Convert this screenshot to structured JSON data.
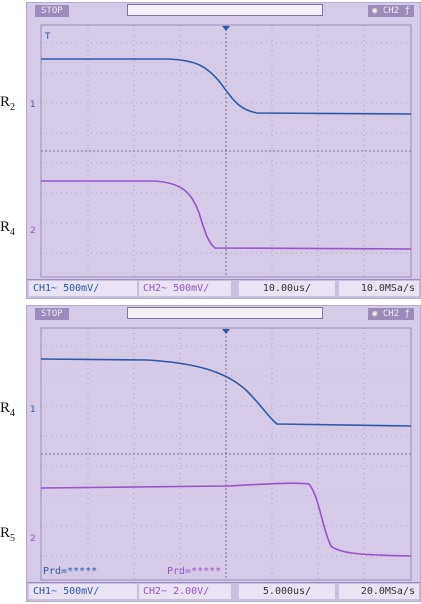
{
  "screens": [
    {
      "status": "STOP",
      "ch2_tag": "CH2",
      "labels": {
        "upper": "R",
        "upper_sub": "2",
        "lower": "R",
        "lower_sub": "4"
      },
      "ch1": "CH1~  500mV/",
      "ch2": "CH2~  500mV/",
      "timebase": "10.00us/",
      "sample": "10.0MSa/s"
    },
    {
      "status": "STOP",
      "ch2_tag": "CH2",
      "labels": {
        "upper": "R",
        "upper_sub": "4",
        "lower": "R",
        "lower_sub": "5"
      },
      "ch1": "CH1~  500mV/",
      "ch2": "CH2~  2.00V/",
      "timebase": "5.000us/",
      "sample": "20.0MSa/s",
      "prd1": "Prd=*****",
      "prd2": "Prd=*****"
    }
  ],
  "colors": {
    "ch1": "#2d5aa8",
    "ch2": "#9b54c8",
    "screen_bg": "#d6cbe6"
  }
}
